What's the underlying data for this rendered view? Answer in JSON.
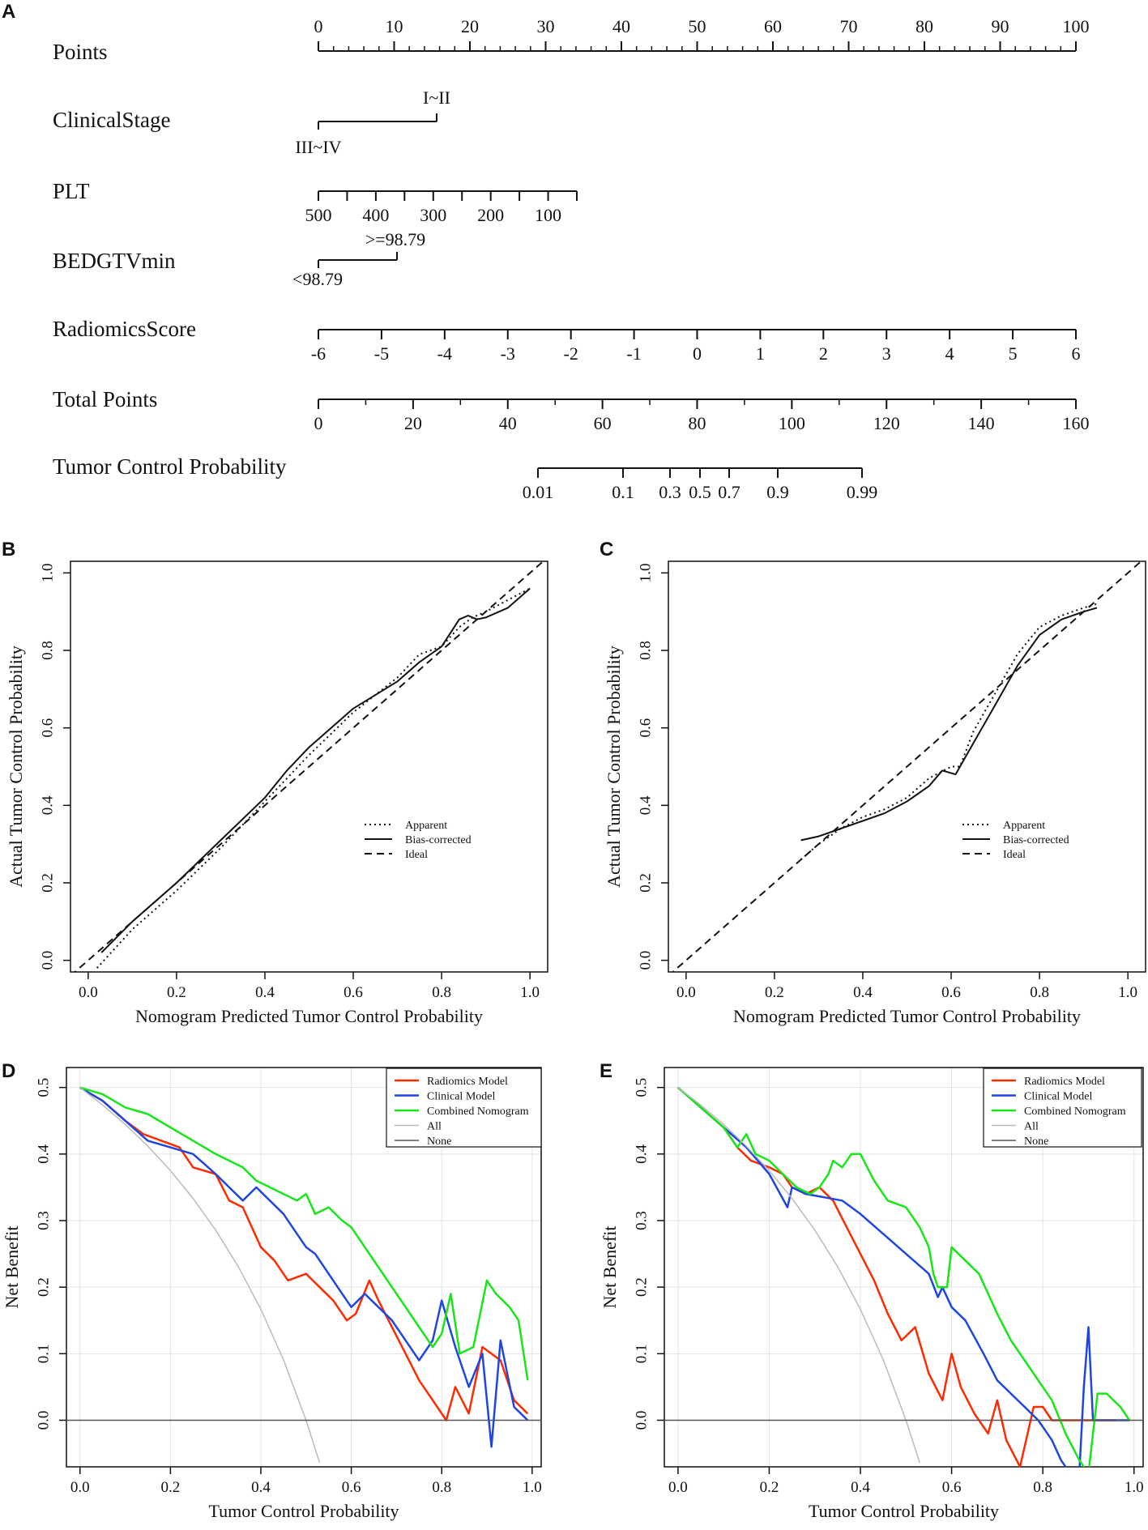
{
  "panels": {
    "A": {
      "letter": "A"
    },
    "B": {
      "letter": "B"
    },
    "C": {
      "letter": "C"
    },
    "D": {
      "letter": "D"
    },
    "E": {
      "letter": "E"
    }
  },
  "colors": {
    "radiomics": "#ff2a00",
    "clinical": "#1f46e0",
    "combined": "#19e619",
    "all": "#bbbbbb",
    "none": "#555555",
    "ink": "#111111"
  },
  "chart_data": [
    {
      "panel": "A",
      "type": "nomogram",
      "rows": [
        {
          "name": "Points",
          "ticks": [
            "0",
            "10",
            "20",
            "30",
            "40",
            "50",
            "60",
            "70",
            "80",
            "90",
            "100"
          ],
          "minor_steps": 50
        },
        {
          "name": "ClinicalStage",
          "low_label": "III~IV",
          "high_label": "I~II"
        },
        {
          "name": "PLT",
          "ticks": [
            "500",
            "400",
            "300",
            "200",
            "100"
          ],
          "half_ticks": 9
        },
        {
          "name": "BEDGTVmin",
          "low_label": "<98.79",
          "high_label": ">=98.79"
        },
        {
          "name": "RadiomicsScore",
          "ticks": [
            "-6",
            "-5",
            "-4",
            "-3",
            "-2",
            "-1",
            "0",
            "1",
            "2",
            "3",
            "4",
            "5",
            "6"
          ]
        },
        {
          "name": "Total Points",
          "ticks": [
            "0",
            "20",
            "40",
            "60",
            "80",
            "100",
            "120",
            "140",
            "160"
          ],
          "minor_steps": 16
        },
        {
          "name": "Tumor Control Probability",
          "ticks": [
            "0.01",
            "0.1",
            "0.3",
            "0.5",
            "0.7",
            "0.9",
            "0.99"
          ]
        }
      ]
    },
    {
      "panel": "B",
      "type": "line",
      "xlabel": "Nomogram Predicted Tumor Control Probability",
      "ylabel": "Actual Tumor Control Probability",
      "xlim": [
        -0.04,
        1.04
      ],
      "ylim": [
        -0.03,
        1.03
      ],
      "xticks": [
        "0.0",
        "0.2",
        "0.4",
        "0.6",
        "0.8",
        "1.0"
      ],
      "yticks": [
        "0.0",
        "0.2",
        "0.4",
        "0.6",
        "0.8",
        "1.0"
      ],
      "legend": [
        "Apparent",
        "Bias-corrected",
        "Ideal"
      ],
      "series": [
        {
          "name": "Apparent",
          "style": "dotted",
          "x": [
            0.02,
            0.1,
            0.2,
            0.3,
            0.4,
            0.5,
            0.6,
            0.7,
            0.75,
            0.8,
            0.84,
            0.87,
            0.9,
            0.95,
            1.0
          ],
          "y": [
            -0.02,
            0.08,
            0.18,
            0.29,
            0.41,
            0.53,
            0.64,
            0.73,
            0.79,
            0.81,
            0.86,
            0.885,
            0.9,
            0.93,
            0.96
          ]
        },
        {
          "name": "Bias-corrected",
          "style": "solid",
          "x": [
            0.03,
            0.1,
            0.2,
            0.3,
            0.4,
            0.45,
            0.5,
            0.6,
            0.7,
            0.75,
            0.8,
            0.84,
            0.86,
            0.88,
            0.9,
            0.95,
            1.0
          ],
          "y": [
            0.02,
            0.1,
            0.2,
            0.31,
            0.42,
            0.49,
            0.55,
            0.65,
            0.72,
            0.77,
            0.81,
            0.88,
            0.89,
            0.88,
            0.885,
            0.91,
            0.96
          ]
        },
        {
          "name": "Ideal",
          "style": "dashed",
          "x": [
            -0.04,
            1.04
          ],
          "y": [
            -0.04,
            1.04
          ]
        }
      ]
    },
    {
      "panel": "C",
      "type": "line",
      "xlabel": "Nomogram Predicted Tumor Control Probability",
      "ylabel": "Actual Tumor Control Probability",
      "xlim": [
        -0.04,
        1.04
      ],
      "ylim": [
        -0.03,
        1.03
      ],
      "xticks": [
        "0.0",
        "0.2",
        "0.4",
        "0.6",
        "0.8",
        "1.0"
      ],
      "yticks": [
        "0.0",
        "0.2",
        "0.4",
        "0.6",
        "0.8",
        "1.0"
      ],
      "legend": [
        "Apparent",
        "Bias-corrected",
        "Ideal"
      ],
      "series": [
        {
          "name": "Apparent",
          "style": "dotted",
          "x": [
            0.26,
            0.3,
            0.35,
            0.4,
            0.45,
            0.5,
            0.55,
            0.6,
            0.62,
            0.65,
            0.7,
            0.75,
            0.8,
            0.85,
            0.9,
            0.93
          ],
          "y": [
            0.26,
            0.3,
            0.34,
            0.37,
            0.39,
            0.42,
            0.47,
            0.5,
            0.5,
            0.59,
            0.69,
            0.79,
            0.86,
            0.89,
            0.91,
            0.92
          ]
        },
        {
          "name": "Bias-corrected",
          "style": "solid",
          "x": [
            0.26,
            0.3,
            0.35,
            0.4,
            0.45,
            0.5,
            0.55,
            0.58,
            0.61,
            0.65,
            0.7,
            0.75,
            0.8,
            0.85,
            0.9,
            0.93
          ],
          "y": [
            0.31,
            0.32,
            0.34,
            0.36,
            0.38,
            0.41,
            0.45,
            0.49,
            0.48,
            0.56,
            0.66,
            0.76,
            0.84,
            0.88,
            0.9,
            0.91
          ]
        },
        {
          "name": "Ideal",
          "style": "dashed",
          "x": [
            -0.04,
            1.04
          ],
          "y": [
            -0.04,
            1.04
          ]
        }
      ]
    },
    {
      "panel": "D",
      "type": "line",
      "xlabel": "Tumor Control Probability",
      "ylabel": "Net Benefit",
      "xlim": [
        -0.03,
        1.02
      ],
      "ylim": [
        -0.07,
        0.53
      ],
      "xticks": [
        "0.0",
        "0.2",
        "0.4",
        "0.6",
        "0.8",
        "1.0"
      ],
      "yticks": [
        "0.0",
        "0.1",
        "0.2",
        "0.3",
        "0.4",
        "0.5"
      ],
      "legend": [
        "Radiomics Model",
        "Clinical Model",
        "Combined Nomogram",
        "All",
        "None"
      ],
      "series": [
        {
          "name": "Radiomics Model",
          "color": "radiomics",
          "x": [
            0,
            0.05,
            0.1,
            0.14,
            0.18,
            0.22,
            0.25,
            0.3,
            0.33,
            0.36,
            0.4,
            0.43,
            0.46,
            0.5,
            0.53,
            0.56,
            0.59,
            0.61,
            0.64,
            0.66,
            0.69,
            0.72,
            0.75,
            0.78,
            0.81,
            0.83,
            0.86,
            0.89,
            0.93,
            0.96,
            0.99
          ],
          "y": [
            0.5,
            0.48,
            0.45,
            0.43,
            0.42,
            0.41,
            0.38,
            0.37,
            0.33,
            0.32,
            0.26,
            0.24,
            0.21,
            0.22,
            0.2,
            0.18,
            0.15,
            0.16,
            0.21,
            0.18,
            0.14,
            0.1,
            0.06,
            0.03,
            0.0,
            0.05,
            0.01,
            0.11,
            0.09,
            0.03,
            0.01
          ]
        },
        {
          "name": "Clinical Model",
          "color": "clinical",
          "x": [
            0,
            0.05,
            0.1,
            0.15,
            0.2,
            0.25,
            0.3,
            0.33,
            0.36,
            0.39,
            0.42,
            0.45,
            0.48,
            0.5,
            0.52,
            0.55,
            0.58,
            0.6,
            0.63,
            0.66,
            0.69,
            0.72,
            0.75,
            0.78,
            0.8,
            0.83,
            0.86,
            0.89,
            0.91,
            0.93,
            0.96,
            0.99
          ],
          "y": [
            0.5,
            0.48,
            0.45,
            0.42,
            0.41,
            0.4,
            0.37,
            0.35,
            0.33,
            0.35,
            0.33,
            0.31,
            0.28,
            0.26,
            0.25,
            0.22,
            0.19,
            0.17,
            0.19,
            0.17,
            0.15,
            0.12,
            0.09,
            0.12,
            0.18,
            0.11,
            0.05,
            0.1,
            -0.04,
            0.12,
            0.02,
            0.0
          ]
        },
        {
          "name": "Combined Nomogram",
          "color": "combined",
          "x": [
            0,
            0.05,
            0.1,
            0.15,
            0.2,
            0.25,
            0.3,
            0.33,
            0.36,
            0.39,
            0.42,
            0.45,
            0.48,
            0.5,
            0.52,
            0.55,
            0.58,
            0.6,
            0.63,
            0.66,
            0.69,
            0.72,
            0.75,
            0.78,
            0.8,
            0.82,
            0.84,
            0.87,
            0.9,
            0.92,
            0.95,
            0.97,
            0.99
          ],
          "y": [
            0.5,
            0.49,
            0.47,
            0.46,
            0.44,
            0.42,
            0.4,
            0.39,
            0.38,
            0.36,
            0.35,
            0.34,
            0.33,
            0.34,
            0.31,
            0.32,
            0.3,
            0.29,
            0.26,
            0.23,
            0.2,
            0.17,
            0.14,
            0.11,
            0.13,
            0.19,
            0.1,
            0.11,
            0.21,
            0.19,
            0.17,
            0.15,
            0.06
          ]
        },
        {
          "name": "All",
          "color": "all",
          "x": [
            0,
            0.05,
            0.1,
            0.15,
            0.2,
            0.25,
            0.3,
            0.35,
            0.4,
            0.45,
            0.5,
            0.53
          ],
          "y": [
            0.5,
            0.4737,
            0.4444,
            0.4118,
            0.375,
            0.3333,
            0.2857,
            0.2308,
            0.1667,
            0.0909,
            0.0,
            -0.0638
          ]
        },
        {
          "name": "None",
          "color": "none",
          "x": [
            -0.03,
            1.02
          ],
          "y": [
            0,
            0
          ]
        }
      ]
    },
    {
      "panel": "E",
      "type": "line",
      "xlabel": "Tumor Control Probability",
      "ylabel": "Net Benefit",
      "xlim": [
        -0.03,
        1.02
      ],
      "ylim": [
        -0.07,
        0.53
      ],
      "xticks": [
        "0.0",
        "0.2",
        "0.4",
        "0.6",
        "0.8",
        "1.0"
      ],
      "yticks": [
        "0.0",
        "0.1",
        "0.2",
        "0.3",
        "0.4",
        "0.5"
      ],
      "legend": [
        "Radiomics Model",
        "Clinical Model",
        "Combined Nomogram",
        "All",
        "None"
      ],
      "series": [
        {
          "name": "Radiomics Model",
          "color": "radiomics",
          "x": [
            0,
            0.05,
            0.1,
            0.13,
            0.16,
            0.2,
            0.23,
            0.25,
            0.28,
            0.31,
            0.34,
            0.37,
            0.4,
            0.43,
            0.46,
            0.49,
            0.52,
            0.55,
            0.58,
            0.6,
            0.62,
            0.65,
            0.68,
            0.7,
            0.72,
            0.75,
            0.78,
            0.8,
            0.82,
            0.85,
            0.88,
            0.92,
            0.96
          ],
          "y": [
            0.5,
            0.47,
            0.44,
            0.41,
            0.39,
            0.38,
            0.37,
            0.35,
            0.34,
            0.35,
            0.33,
            0.29,
            0.25,
            0.21,
            0.16,
            0.12,
            0.14,
            0.07,
            0.03,
            0.1,
            0.05,
            0.01,
            -0.02,
            0.03,
            -0.03,
            -0.07,
            0.02,
            0.02,
            0.0,
            0.0,
            0.0,
            0.0,
            0.0
          ]
        },
        {
          "name": "Clinical Model",
          "color": "clinical",
          "x": [
            0,
            0.05,
            0.1,
            0.15,
            0.2,
            0.24,
            0.25,
            0.28,
            0.32,
            0.36,
            0.4,
            0.45,
            0.5,
            0.55,
            0.57,
            0.58,
            0.6,
            0.63,
            0.67,
            0.7,
            0.73,
            0.76,
            0.79,
            0.82,
            0.84,
            0.86,
            0.88,
            0.89,
            0.9,
            0.91,
            0.95,
            0.99
          ],
          "y": [
            0.5,
            0.47,
            0.44,
            0.41,
            0.37,
            0.32,
            0.35,
            0.34,
            0.335,
            0.33,
            0.31,
            0.28,
            0.25,
            0.22,
            0.185,
            0.2,
            0.17,
            0.15,
            0.1,
            0.06,
            0.04,
            0.02,
            0.0,
            -0.03,
            -0.06,
            -0.08,
            -0.08,
            0.05,
            0.14,
            0.0,
            0.0,
            0.0
          ]
        },
        {
          "name": "Combined Nomogram",
          "color": "combined",
          "x": [
            0,
            0.05,
            0.1,
            0.13,
            0.15,
            0.17,
            0.2,
            0.23,
            0.26,
            0.29,
            0.31,
            0.33,
            0.34,
            0.36,
            0.38,
            0.4,
            0.43,
            0.46,
            0.5,
            0.53,
            0.55,
            0.56,
            0.57,
            0.59,
            0.6,
            0.63,
            0.66,
            0.7,
            0.73,
            0.76,
            0.79,
            0.82,
            0.85,
            0.88,
            0.9,
            0.92,
            0.94,
            0.97,
            0.99
          ],
          "y": [
            0.5,
            0.47,
            0.44,
            0.41,
            0.43,
            0.4,
            0.39,
            0.37,
            0.35,
            0.34,
            0.35,
            0.37,
            0.39,
            0.38,
            0.4,
            0.4,
            0.36,
            0.33,
            0.32,
            0.29,
            0.26,
            0.22,
            0.2,
            0.2,
            0.26,
            0.24,
            0.22,
            0.16,
            0.12,
            0.09,
            0.06,
            0.03,
            -0.02,
            -0.06,
            -0.08,
            0.04,
            0.04,
            0.02,
            0.0
          ]
        },
        {
          "name": "All",
          "color": "all",
          "x": [
            0,
            0.05,
            0.1,
            0.15,
            0.2,
            0.25,
            0.3,
            0.35,
            0.4,
            0.45,
            0.5,
            0.53
          ],
          "y": [
            0.5,
            0.4737,
            0.4444,
            0.4118,
            0.375,
            0.3333,
            0.2857,
            0.2308,
            0.1667,
            0.0909,
            0.0,
            -0.0638
          ]
        },
        {
          "name": "None",
          "color": "none",
          "x": [
            -0.03,
            1.02
          ],
          "y": [
            0,
            0
          ]
        }
      ]
    }
  ]
}
